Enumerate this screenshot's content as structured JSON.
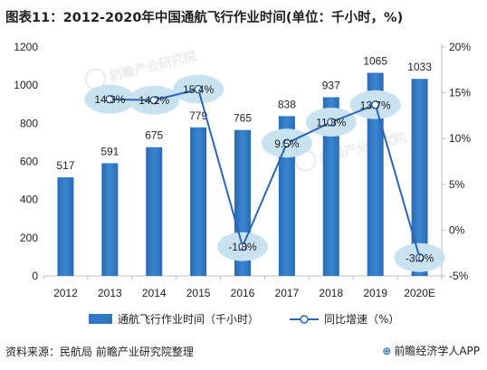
{
  "header": {
    "title": "图表11：2012-2020年中国通航飞行作业时间(单位：千小时，%)"
  },
  "footer": {
    "source": "资料来源：民航局 前瞻产业研究院整理",
    "brand": "前瞻经济学人APP",
    "brand_icon": "qianzhan-logo-icon"
  },
  "watermark": {
    "text": "前瞻产业研究院"
  },
  "colors": {
    "bar": "#2f78c4",
    "line": "#2a66b5",
    "bubble": "#c8e3ef",
    "axis": "#bfbfbf",
    "text": "#222222"
  },
  "chart_data": {
    "type": "bar",
    "title": "图表11：2012-2020年中国通航飞行作业时间(单位：千小时，%)",
    "categories": [
      "2012",
      "2013",
      "2014",
      "2015",
      "2016",
      "2017",
      "2018",
      "2019",
      "2020E"
    ],
    "series": [
      {
        "name": "通航飞行作业时间（千小时）",
        "type": "bar",
        "axis": "left",
        "values": [
          517,
          591,
          675,
          779,
          765,
          838,
          937,
          1065,
          1033
        ],
        "labels": [
          "517",
          "591",
          "675",
          "779",
          "765",
          "838",
          "937",
          "1065",
          "1033"
        ]
      },
      {
        "name": "同比增速（%）",
        "type": "line",
        "axis": "right",
        "values": [
          null,
          14.3,
          14.2,
          15.4,
          -1.8,
          9.5,
          11.8,
          13.7,
          -3.0
        ],
        "labels": [
          "",
          "14.3%",
          "14.2%",
          "15.4%",
          "-1.8%",
          "9.5%",
          "11.8%",
          "13.7%",
          "-3.0%"
        ]
      }
    ],
    "y_left": {
      "min": 0,
      "max": 1200,
      "ticks": [
        0,
        200,
        400,
        600,
        800,
        1000,
        1200
      ],
      "tick_labels": [
        "0",
        "200",
        "400",
        "600",
        "800",
        "1000",
        "1200"
      ]
    },
    "y_right": {
      "min": -5,
      "max": 20,
      "ticks": [
        -5,
        0,
        5,
        10,
        15,
        20
      ],
      "tick_labels": [
        "-5%",
        "0%",
        "5%",
        "10%",
        "15%",
        "20%"
      ]
    },
    "grid": false,
    "legend_position": "bottom"
  }
}
